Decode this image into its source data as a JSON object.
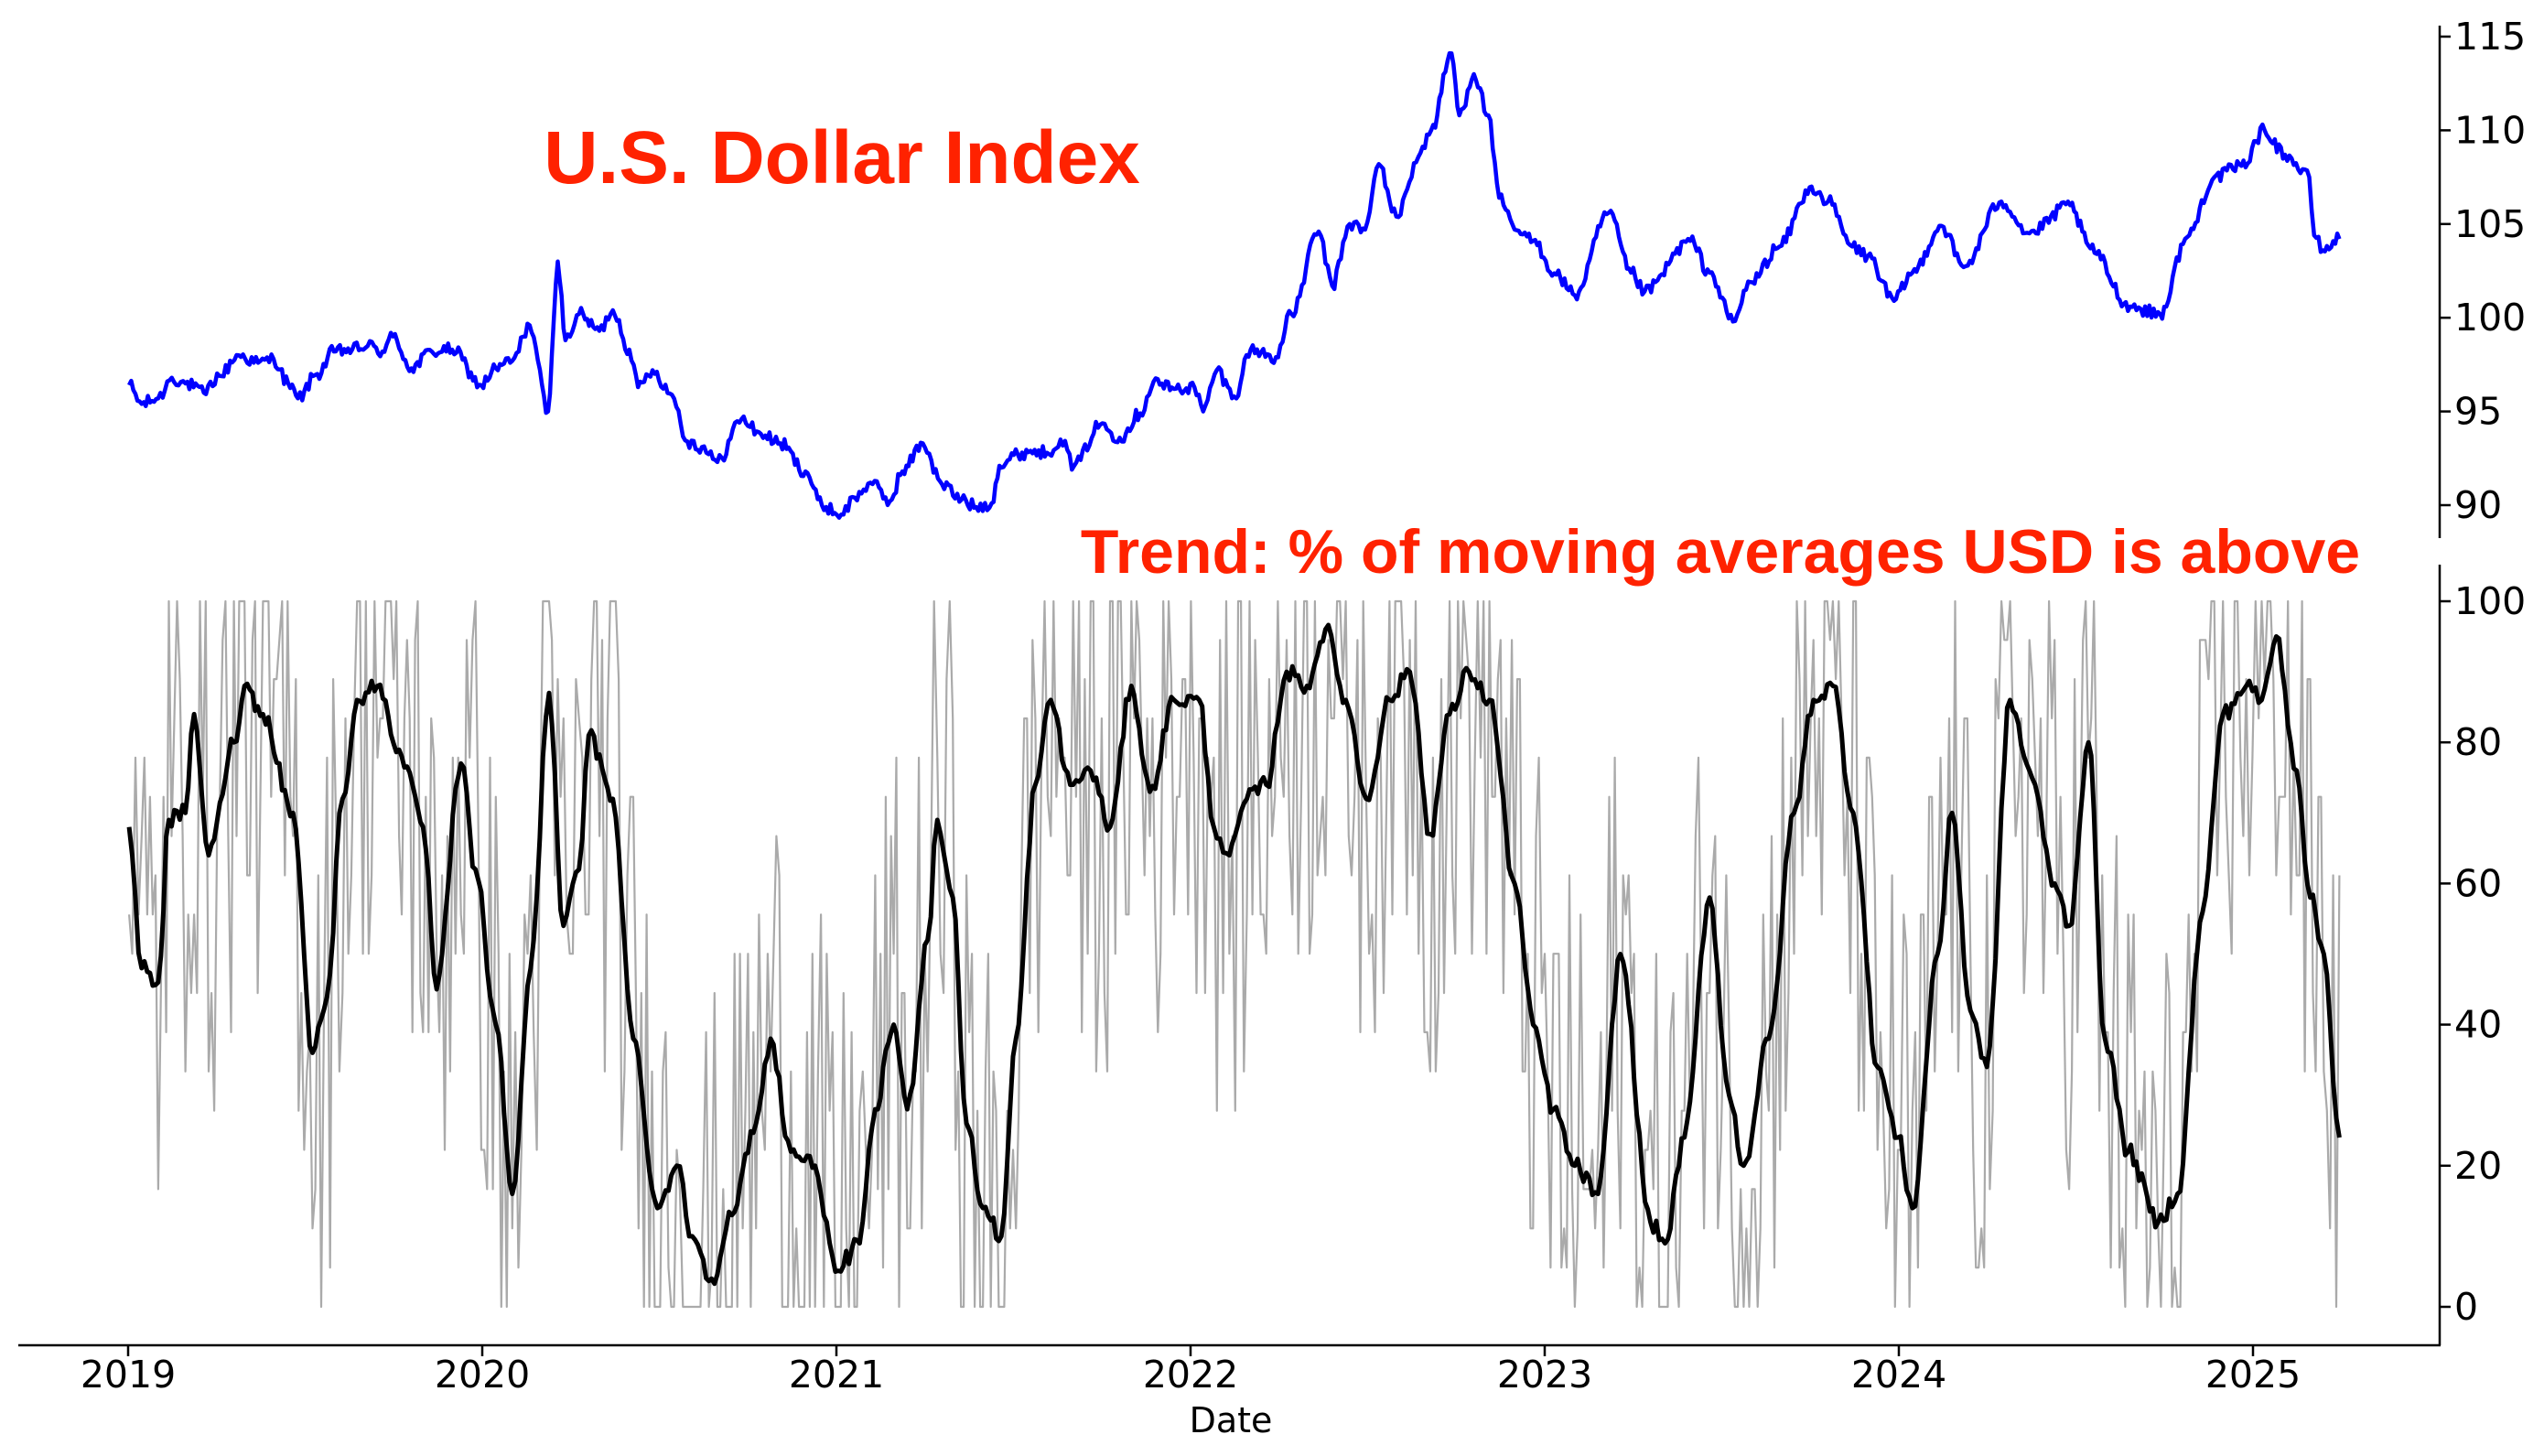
{
  "chart_data": [
    {
      "type": "line",
      "title": "U.S. Dollar Index",
      "xlabel": "",
      "ylabel": "",
      "x_range": [
        "2019-01-02",
        "2025-03-31"
      ],
      "ylim": [
        88,
        115.5
      ],
      "yticks": [
        90,
        95,
        100,
        105,
        110,
        115
      ],
      "grid": false,
      "series": [
        {
          "color": "#0000ff",
          "points": [
            [
              "2019-01-02",
              96.4
            ],
            [
              "2019-01-15",
              95.4
            ],
            [
              "2019-02-01",
              95.7
            ],
            [
              "2019-02-15",
              96.8
            ],
            [
              "2019-03-01",
              96.5
            ],
            [
              "2019-03-20",
              96.0
            ],
            [
              "2019-04-05",
              96.9
            ],
            [
              "2019-04-25",
              98.0
            ],
            [
              "2019-05-15",
              97.6
            ],
            [
              "2019-05-31",
              97.8
            ],
            [
              "2019-06-15",
              96.5
            ],
            [
              "2019-06-25",
              95.7
            ],
            [
              "2019-07-15",
              97.0
            ],
            [
              "2019-08-01",
              98.2
            ],
            [
              "2019-08-20",
              98.3
            ],
            [
              "2019-09-05",
              98.5
            ],
            [
              "2019-09-20",
              98.2
            ],
            [
              "2019-10-01",
              99.0
            ],
            [
              "2019-10-20",
              97.3
            ],
            [
              "2019-11-10",
              98.2
            ],
            [
              "2019-12-01",
              98.3
            ],
            [
              "2019-12-31",
              96.4
            ],
            [
              "2020-01-15",
              97.3
            ],
            [
              "2020-02-01",
              97.7
            ],
            [
              "2020-02-19",
              99.6
            ],
            [
              "2020-03-09",
              95.0
            ],
            [
              "2020-03-19",
              103.0
            ],
            [
              "2020-03-27",
              98.8
            ],
            [
              "2020-04-10",
              100.2
            ],
            [
              "2020-05-01",
              99.3
            ],
            [
              "2020-05-15",
              100.4
            ],
            [
              "2020-06-01",
              98.3
            ],
            [
              "2020-06-10",
              96.3
            ],
            [
              "2020-06-25",
              97.2
            ],
            [
              "2020-07-15",
              95.9
            ],
            [
              "2020-07-31",
              93.4
            ],
            [
              "2020-08-15",
              93.1
            ],
            [
              "2020-08-31",
              92.3
            ],
            [
              "2020-09-25",
              94.6
            ],
            [
              "2020-10-15",
              93.8
            ],
            [
              "2020-11-04",
              93.3
            ],
            [
              "2020-11-30",
              91.8
            ],
            [
              "2020-12-17",
              90.0
            ],
            [
              "2021-01-06",
              89.5
            ],
            [
              "2021-01-20",
              90.4
            ],
            [
              "2021-02-05",
              91.2
            ],
            [
              "2021-02-25",
              90.2
            ],
            [
              "2021-03-10",
              91.8
            ],
            [
              "2021-03-31",
              93.3
            ],
            [
              "2021-04-20",
              91.1
            ],
            [
              "2021-05-10",
              90.3
            ],
            [
              "2021-05-25",
              89.9
            ],
            [
              "2021-06-10",
              90.1
            ],
            [
              "2021-06-18",
              92.1
            ],
            [
              "2021-07-07",
              92.7
            ],
            [
              "2021-07-20",
              92.9
            ],
            [
              "2021-08-06",
              92.8
            ],
            [
              "2021-08-20",
              93.5
            ],
            [
              "2021-09-03",
              92.1
            ],
            [
              "2021-09-30",
              94.3
            ],
            [
              "2021-10-20",
              93.6
            ],
            [
              "2021-11-10",
              94.9
            ],
            [
              "2021-11-24",
              96.6
            ],
            [
              "2021-12-15",
              96.2
            ],
            [
              "2022-01-05",
              96.3
            ],
            [
              "2022-01-14",
              95.0
            ],
            [
              "2022-01-28",
              97.2
            ],
            [
              "2022-02-15",
              95.8
            ],
            [
              "2022-03-04",
              98.3
            ],
            [
              "2022-03-30",
              97.9
            ],
            [
              "2022-04-15",
              100.2
            ],
            [
              "2022-05-13",
              104.6
            ],
            [
              "2022-05-27",
              101.7
            ],
            [
              "2022-06-14",
              105.0
            ],
            [
              "2022-06-30",
              104.7
            ],
            [
              "2022-07-14",
              108.2
            ],
            [
              "2022-08-01",
              105.4
            ],
            [
              "2022-08-26",
              108.8
            ],
            [
              "2022-09-06",
              110.0
            ],
            [
              "2022-09-27",
              114.1
            ],
            [
              "2022-10-05",
              110.8
            ],
            [
              "2022-10-20",
              113.0
            ],
            [
              "2022-11-04",
              110.8
            ],
            [
              "2022-11-15",
              106.4
            ],
            [
              "2022-12-01",
              104.7
            ],
            [
              "2022-12-20",
              104.1
            ],
            [
              "2023-01-13",
              102.3
            ],
            [
              "2023-02-01",
              101.2
            ],
            [
              "2023-03-08",
              105.6
            ],
            [
              "2023-03-31",
              102.4
            ],
            [
              "2023-04-14",
              101.4
            ],
            [
              "2023-05-31",
              104.1
            ],
            [
              "2023-06-20",
              102.4
            ],
            [
              "2023-07-14",
              99.8
            ],
            [
              "2023-08-01",
              101.9
            ],
            [
              "2023-08-31",
              103.8
            ],
            [
              "2023-09-29",
              106.6
            ],
            [
              "2023-10-03",
              107.0
            ],
            [
              "2023-10-20",
              106.2
            ],
            [
              "2023-11-14",
              103.8
            ],
            [
              "2023-11-30",
              103.3
            ],
            [
              "2023-12-27",
              100.9
            ],
            [
              "2024-01-15",
              102.4
            ],
            [
              "2024-02-14",
              104.9
            ],
            [
              "2024-03-08",
              102.7
            ],
            [
              "2024-04-16",
              106.2
            ],
            [
              "2024-05-15",
              104.5
            ],
            [
              "2024-06-26",
              106.0
            ],
            [
              "2024-07-17",
              103.7
            ],
            [
              "2024-08-27",
              100.6
            ],
            [
              "2024-09-27",
              100.2
            ],
            [
              "2024-10-25",
              104.3
            ],
            [
              "2024-11-22",
              107.5
            ],
            [
              "2024-12-20",
              108.1
            ],
            [
              "2025-01-13",
              110.0
            ],
            [
              "2025-02-03",
              108.7
            ],
            [
              "2025-02-28",
              107.5
            ],
            [
              "2025-03-05",
              104.4
            ],
            [
              "2025-03-14",
              103.6
            ],
            [
              "2025-03-31",
              104.2
            ]
          ]
        }
      ]
    },
    {
      "type": "line",
      "title": "Trend: % of moving averages USD is above",
      "xlabel": "Date",
      "ylabel": "",
      "x_range": [
        "2019-01-02",
        "2025-03-31"
      ],
      "ylim": [
        -5,
        100
      ],
      "yticks": [
        0,
        20,
        40,
        60,
        80,
        100
      ],
      "xticks": [
        "2019",
        "2020",
        "2021",
        "2022",
        "2023",
        "2024",
        "2025"
      ],
      "grid": false,
      "series": [
        {
          "color": "#000000",
          "style": "smoothed",
          "points": [
            [
              "2019-01-02",
              68
            ],
            [
              "2019-01-15",
              48
            ],
            [
              "2019-02-01",
              46
            ],
            [
              "2019-02-12",
              69
            ],
            [
              "2019-03-01",
              70
            ],
            [
              "2019-03-10",
              84
            ],
            [
              "2019-03-25",
              64
            ],
            [
              "2019-04-20",
              80
            ],
            [
              "2019-05-01",
              88
            ],
            [
              "2019-05-20",
              84
            ],
            [
              "2019-06-20",
              70
            ],
            [
              "2019-07-10",
              36
            ],
            [
              "2019-07-25",
              44
            ],
            [
              "2019-08-10",
              72
            ],
            [
              "2019-08-25",
              86
            ],
            [
              "2019-09-15",
              88
            ],
            [
              "2019-10-10",
              78
            ],
            [
              "2019-11-01",
              68
            ],
            [
              "2019-11-15",
              45
            ],
            [
              "2019-12-10",
              77
            ],
            [
              "2019-12-25",
              62
            ],
            [
              "2020-01-15",
              40
            ],
            [
              "2020-02-01",
              16
            ],
            [
              "2020-02-20",
              48
            ],
            [
              "2020-03-10",
              87
            ],
            [
              "2020-03-25",
              54
            ],
            [
              "2020-04-10",
              62
            ],
            [
              "2020-04-20",
              81
            ],
            [
              "2020-05-15",
              72
            ],
            [
              "2020-06-05",
              38
            ],
            [
              "2020-06-30",
              14
            ],
            [
              "2020-07-20",
              20
            ],
            [
              "2020-08-05",
              10
            ],
            [
              "2020-08-25",
              4
            ],
            [
              "2020-09-15",
              13
            ],
            [
              "2020-10-10",
              26
            ],
            [
              "2020-10-25",
              38
            ],
            [
              "2020-11-15",
              22
            ],
            [
              "2020-12-10",
              20
            ],
            [
              "2020-12-31",
              5
            ],
            [
              "2021-01-25",
              9
            ],
            [
              "2021-02-10",
              28
            ],
            [
              "2021-03-01",
              40
            ],
            [
              "2021-03-15",
              28
            ],
            [
              "2021-04-05",
              52
            ],
            [
              "2021-04-15",
              69
            ],
            [
              "2021-05-01",
              58
            ],
            [
              "2021-05-15",
              26
            ],
            [
              "2021-06-01",
              14
            ],
            [
              "2021-06-20",
              10
            ],
            [
              "2021-07-05",
              38
            ],
            [
              "2021-07-25",
              74
            ],
            [
              "2021-08-10",
              86
            ],
            [
              "2021-08-30",
              74
            ],
            [
              "2021-09-20",
              76
            ],
            [
              "2021-10-10",
              68
            ],
            [
              "2021-11-01",
              88
            ],
            [
              "2021-11-20",
              73
            ],
            [
              "2021-12-15",
              86
            ],
            [
              "2022-01-10",
              86
            ],
            [
              "2022-01-25",
              68
            ],
            [
              "2022-02-10",
              64
            ],
            [
              "2022-02-28",
              72
            ],
            [
              "2022-03-20",
              74
            ],
            [
              "2022-04-10",
              90
            ],
            [
              "2022-05-01",
              88
            ],
            [
              "2022-05-20",
              96
            ],
            [
              "2022-06-10",
              86
            ],
            [
              "2022-07-01",
              72
            ],
            [
              "2022-07-25",
              86
            ],
            [
              "2022-08-15",
              90
            ],
            [
              "2022-09-05",
              67
            ],
            [
              "2022-09-25",
              84
            ],
            [
              "2022-10-15",
              90
            ],
            [
              "2022-11-05",
              86
            ],
            [
              "2022-12-01",
              60
            ],
            [
              "2022-12-20",
              40
            ],
            [
              "2023-01-10",
              28
            ],
            [
              "2023-02-01",
              20
            ],
            [
              "2023-02-25",
              16
            ],
            [
              "2023-03-20",
              50
            ],
            [
              "2023-04-20",
              12
            ],
            [
              "2023-05-05",
              9
            ],
            [
              "2023-05-25",
              24
            ],
            [
              "2023-06-20",
              58
            ],
            [
              "2023-07-10",
              30
            ],
            [
              "2023-07-25",
              20
            ],
            [
              "2023-08-20",
              38
            ],
            [
              "2023-09-15",
              70
            ],
            [
              "2023-10-05",
              86
            ],
            [
              "2023-10-25",
              88
            ],
            [
              "2023-11-15",
              70
            ],
            [
              "2023-12-10",
              34
            ],
            [
              "2023-12-31",
              24
            ],
            [
              "2024-01-15",
              14
            ],
            [
              "2024-02-10",
              50
            ],
            [
              "2024-02-25",
              70
            ],
            [
              "2024-03-15",
              42
            ],
            [
              "2024-04-01",
              34
            ],
            [
              "2024-04-25",
              86
            ],
            [
              "2024-05-15",
              76
            ],
            [
              "2024-06-10",
              60
            ],
            [
              "2024-06-25",
              54
            ],
            [
              "2024-07-15",
              80
            ],
            [
              "2024-08-01",
              38
            ],
            [
              "2024-08-25",
              22
            ],
            [
              "2024-09-25",
              12
            ],
            [
              "2024-10-15",
              16
            ],
            [
              "2024-11-10",
              56
            ],
            [
              "2024-12-01",
              84
            ],
            [
              "2024-12-25",
              88
            ],
            [
              "2025-01-10",
              86
            ],
            [
              "2025-01-25",
              95
            ],
            [
              "2025-02-15",
              76
            ],
            [
              "2025-03-01",
              58
            ],
            [
              "2025-03-15",
              50
            ],
            [
              "2025-03-31",
              24
            ]
          ]
        },
        {
          "color": "#aaaaaa",
          "style": "raw",
          "generated_from": "black series",
          "values_range": [
            0,
            100
          ]
        }
      ]
    }
  ]
}
